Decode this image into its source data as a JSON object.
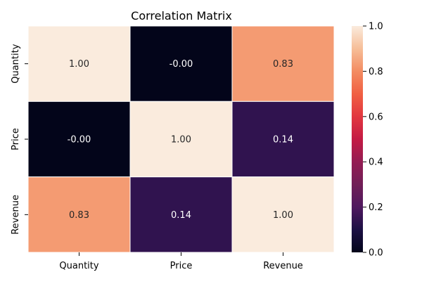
{
  "chart_data": {
    "type": "heatmap",
    "title": "Correlation Matrix",
    "x_categories": [
      "Quantity",
      "Price",
      "Revenue"
    ],
    "y_categories": [
      "Quantity",
      "Price",
      "Revenue"
    ],
    "matrix": [
      [
        1.0,
        -0.0,
        0.83
      ],
      [
        -0.0,
        1.0,
        0.14
      ],
      [
        0.83,
        0.14,
        1.0
      ]
    ],
    "annotations": [
      [
        "1.00",
        "-0.00",
        "0.83"
      ],
      [
        "-0.00",
        "1.00",
        "0.14"
      ],
      [
        "0.83",
        "0.14",
        "1.00"
      ]
    ],
    "colorbar": {
      "range": [
        0.0,
        1.0
      ],
      "ticks": [
        "0.0",
        "0.2",
        "0.4",
        "0.6",
        "0.8",
        "1.0"
      ],
      "tick_values": [
        0.0,
        0.2,
        0.4,
        0.6,
        0.8,
        1.0
      ]
    },
    "colormap": "rocket",
    "xlabel": "",
    "ylabel": ""
  }
}
